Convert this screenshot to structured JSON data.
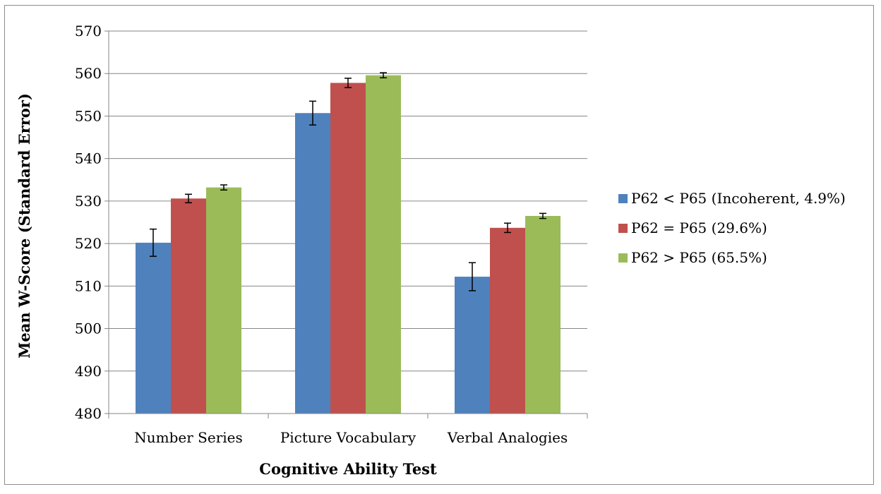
{
  "chart_data": {
    "type": "bar",
    "title": "",
    "xlabel": "Cognitive Ability Test",
    "ylabel": "Mean W-Score (Standard Error)",
    "ylim": [
      480,
      570
    ],
    "yticks": [
      480,
      490,
      500,
      510,
      520,
      530,
      540,
      550,
      560,
      570
    ],
    "grid": true,
    "legend_position": "right",
    "categories": [
      "Number Series",
      "Picture Vocabulary",
      "Verbal Analogies"
    ],
    "series": [
      {
        "name": "P62 < P65 (Incoherent, 4.9%)",
        "color": "#4f81bd",
        "values": [
          520.2,
          550.7,
          512.2
        ],
        "errors": [
          3.2,
          2.8,
          3.3
        ]
      },
      {
        "name": "P62 = P65 (29.6%)",
        "color": "#c0504d",
        "values": [
          530.6,
          557.8,
          523.7
        ],
        "errors": [
          1.0,
          1.1,
          1.1
        ]
      },
      {
        "name": "P62 > P65 (65.5%)",
        "color": "#9bbb59",
        "values": [
          533.2,
          559.6,
          526.5
        ],
        "errors": [
          0.6,
          0.6,
          0.6
        ]
      }
    ]
  }
}
